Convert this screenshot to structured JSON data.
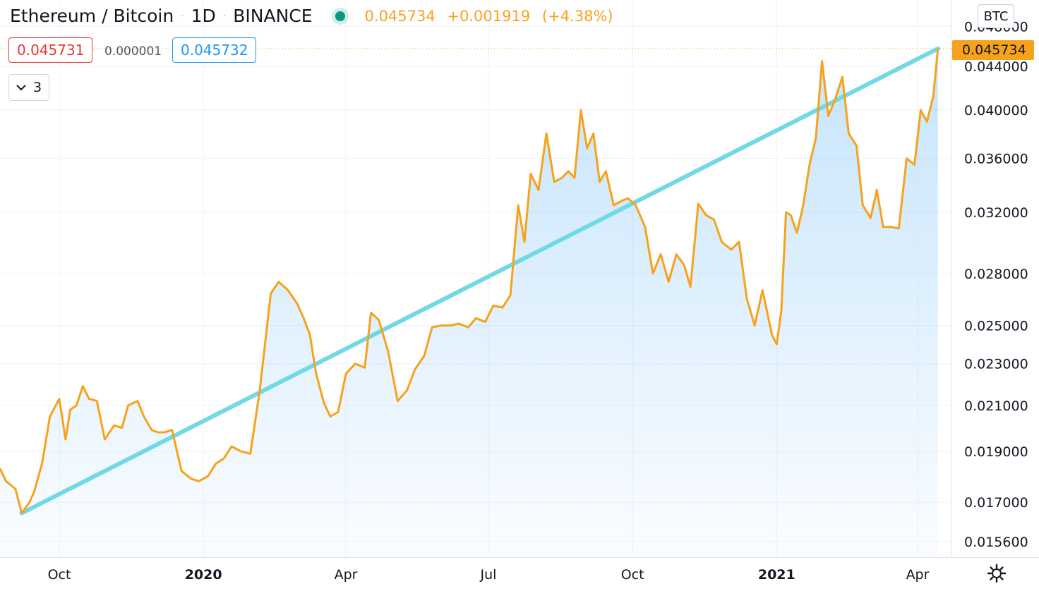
{
  "header": {
    "symbol": "Ethereum / Bitcoin",
    "interval": "1D",
    "exchange": "BINANCE",
    "last": "0.045734",
    "change": "+0.001919",
    "change_pct": "(+4.38%)"
  },
  "orderbook": {
    "bid": "0.045731",
    "spread": "0.000001",
    "ask": "0.045732"
  },
  "indicators_toggle": "3",
  "price_unit": "BTC",
  "current_price_label": "0.045734",
  "colors": {
    "line": "#f7a21b",
    "trendline": "#71d8e6",
    "bid": "#e53935",
    "ask": "#2196f3",
    "live_dot": "#089981"
  },
  "chart_data": {
    "type": "area",
    "scale": "log",
    "title": "Ethereum / Bitcoin · 1D · BINANCE",
    "x_tick_labels": [
      "Oct",
      "2020",
      "Apr",
      "Jul",
      "Oct",
      "2021",
      "Apr"
    ],
    "x_tick_dates": [
      "2019-10-01",
      "2020-01-01",
      "2020-04-01",
      "2020-07-01",
      "2020-10-01",
      "2021-01-01",
      "2021-04-01"
    ],
    "y_tick_labels": [
      "0.015600",
      "0.017000",
      "0.019000",
      "0.021000",
      "0.023000",
      "0.025000",
      "0.028000",
      "0.032000",
      "0.036000",
      "0.040000",
      "0.044000",
      "0.048000"
    ],
    "ylim": [
      0.0152,
      0.0495
    ],
    "grid": true,
    "series": [
      {
        "x": [
          "2019-08-22",
          "2019-08-28",
          "2019-09-03",
          "2019-09-07",
          "2019-09-12",
          "2019-09-15",
          "2019-09-20",
          "2019-09-25",
          "2019-10-01",
          "2019-10-05",
          "2019-10-08",
          "2019-10-12",
          "2019-10-16",
          "2019-10-20",
          "2019-10-25",
          "2019-10-30",
          "2019-11-05",
          "2019-11-10",
          "2019-11-14",
          "2019-11-20",
          "2019-11-24",
          "2019-11-29",
          "2019-12-03",
          "2019-12-07",
          "2019-12-12",
          "2019-12-18",
          "2019-12-24",
          "2019-12-29",
          "2020-01-04",
          "2020-01-09",
          "2020-01-14",
          "2020-01-19",
          "2020-01-25",
          "2020-01-31",
          "2020-02-06",
          "2020-02-13",
          "2020-02-18",
          "2020-02-24",
          "2020-03-01",
          "2020-03-05",
          "2020-03-09",
          "2020-03-13",
          "2020-03-18",
          "2020-03-22",
          "2020-03-27",
          "2020-04-01",
          "2020-04-07",
          "2020-04-13",
          "2020-04-17",
          "2020-04-22",
          "2020-04-28",
          "2020-05-04",
          "2020-05-10",
          "2020-05-15",
          "2020-05-21",
          "2020-05-26",
          "2020-06-01",
          "2020-06-07",
          "2020-06-12",
          "2020-06-18",
          "2020-06-23",
          "2020-06-29",
          "2020-07-04",
          "2020-07-10",
          "2020-07-15",
          "2020-07-20",
          "2020-07-24",
          "2020-07-28",
          "2020-08-02",
          "2020-08-07",
          "2020-08-12",
          "2020-08-17",
          "2020-08-21",
          "2020-08-25",
          "2020-08-29",
          "2020-09-02",
          "2020-09-06",
          "2020-09-10",
          "2020-09-14",
          "2020-09-19",
          "2020-09-24",
          "2020-09-28",
          "2020-10-03",
          "2020-10-09",
          "2020-10-14",
          "2020-10-19",
          "2020-10-24",
          "2020-10-29",
          "2020-11-03",
          "2020-11-07",
          "2020-11-12",
          "2020-11-17",
          "2020-11-22",
          "2020-11-27",
          "2020-12-03",
          "2020-12-08",
          "2020-12-13",
          "2020-12-18",
          "2020-12-23",
          "2020-12-29",
          "2021-01-01",
          "2021-01-04",
          "2021-01-07",
          "2021-01-10",
          "2021-01-14",
          "2021-01-18",
          "2021-01-22",
          "2021-01-26",
          "2021-01-30",
          "2021-02-03",
          "2021-02-07",
          "2021-02-12",
          "2021-02-16",
          "2021-02-21",
          "2021-02-25",
          "2021-03-02",
          "2021-03-06",
          "2021-03-10",
          "2021-03-15",
          "2021-03-20",
          "2021-03-25",
          "2021-03-30",
          "2021-04-03",
          "2021-04-07",
          "2021-04-11",
          "2021-04-14"
        ],
        "y": [
          0.0183,
          0.0178,
          0.0175,
          0.0166,
          0.017,
          0.0174,
          0.0185,
          0.0205,
          0.0213,
          0.0195,
          0.0208,
          0.021,
          0.0219,
          0.0213,
          0.0212,
          0.0195,
          0.0201,
          0.02,
          0.021,
          0.0212,
          0.0205,
          0.0199,
          0.0198,
          0.0198,
          0.0199,
          0.0182,
          0.0179,
          0.0178,
          0.018,
          0.0185,
          0.0187,
          0.0192,
          0.019,
          0.0189,
          0.0217,
          0.0268,
          0.0275,
          0.027,
          0.0262,
          0.0254,
          0.0245,
          0.0225,
          0.0211,
          0.0205,
          0.0207,
          0.0225,
          0.023,
          0.0228,
          0.0257,
          0.0253,
          0.0236,
          0.0212,
          0.0217,
          0.0227,
          0.0234,
          0.0249,
          0.025,
          0.025,
          0.0251,
          0.0249,
          0.0254,
          0.0252,
          0.0261,
          0.026,
          0.0267,
          0.0325,
          0.03,
          0.0348,
          0.0336,
          0.038,
          0.0342,
          0.0345,
          0.035,
          0.0345,
          0.04,
          0.0368,
          0.038,
          0.0342,
          0.035,
          0.0325,
          0.0328,
          0.033,
          0.0325,
          0.031,
          0.028,
          0.0292,
          0.0275,
          0.0292,
          0.0285,
          0.0272,
          0.0326,
          0.0318,
          0.0315,
          0.03,
          0.0295,
          0.03,
          0.0265,
          0.025,
          0.027,
          0.0245,
          0.024,
          0.0258,
          0.032,
          0.0318,
          0.0306,
          0.0325,
          0.0355,
          0.0376,
          0.0445,
          0.0395,
          0.0408,
          0.043,
          0.038,
          0.037,
          0.0325,
          0.0316,
          0.0336,
          0.031,
          0.031,
          0.0309,
          0.036,
          0.0355,
          0.04,
          0.039,
          0.0412,
          0.045734
        ]
      }
    ],
    "trendline": {
      "from": [
        "2019-09-07",
        0.0166
      ],
      "to": [
        "2021-04-14",
        0.045734
      ]
    },
    "last_price": 0.045734
  }
}
